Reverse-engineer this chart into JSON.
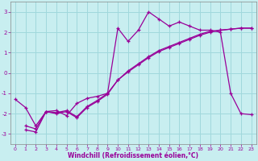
{
  "xlabel": "Windchill (Refroidissement éolien,°C)",
  "background_color": "#c8eef0",
  "line_color": "#990099",
  "grid_color": "#a0d8dc",
  "xlim": [
    -0.5,
    23.5
  ],
  "ylim": [
    -3.5,
    3.5
  ],
  "yticks": [
    -3,
    -2,
    -1,
    0,
    1,
    2,
    3
  ],
  "xticks": [
    0,
    1,
    2,
    3,
    4,
    5,
    6,
    7,
    8,
    9,
    10,
    11,
    12,
    13,
    14,
    15,
    16,
    17,
    18,
    19,
    20,
    21,
    22,
    23
  ],
  "line1_x": [
    0,
    1,
    2,
    3,
    4,
    5,
    6,
    7,
    8,
    9,
    10,
    11,
    12,
    13,
    14,
    15,
    16,
    17,
    18,
    19,
    20,
    21,
    22,
    23
  ],
  "line1_y": [
    -1.3,
    -1.7,
    -2.6,
    -1.9,
    -1.85,
    -2.1,
    -1.5,
    -1.25,
    -1.15,
    -1.0,
    2.2,
    1.55,
    2.1,
    3.0,
    2.65,
    2.3,
    2.5,
    2.3,
    2.1,
    2.1,
    2.0,
    -1.0,
    -2.0,
    -2.05
  ],
  "line2_x": [
    1,
    2,
    3,
    4,
    5,
    6,
    7,
    8,
    9,
    10,
    11,
    12,
    13,
    14,
    15,
    16,
    17,
    18,
    19,
    20,
    21,
    22,
    23
  ],
  "line2_y": [
    -2.8,
    -2.9,
    -1.9,
    -2.0,
    -1.9,
    -2.2,
    -1.7,
    -1.4,
    -1.05,
    -0.35,
    0.05,
    0.4,
    0.75,
    1.05,
    1.25,
    1.45,
    1.65,
    1.85,
    2.0,
    2.1,
    2.15,
    2.2,
    2.2
  ],
  "line3_x": [
    1,
    2,
    3,
    4,
    5,
    6,
    7,
    8,
    9,
    10,
    11,
    12,
    13,
    14,
    15,
    16,
    17,
    18,
    19,
    20,
    21,
    22,
    23
  ],
  "line3_y": [
    -2.6,
    -2.75,
    -1.9,
    -1.95,
    -1.85,
    -2.15,
    -1.65,
    -1.35,
    -1.0,
    -0.35,
    0.1,
    0.45,
    0.8,
    1.1,
    1.3,
    1.5,
    1.7,
    1.9,
    2.05,
    2.1,
    2.15,
    2.2,
    2.2
  ]
}
